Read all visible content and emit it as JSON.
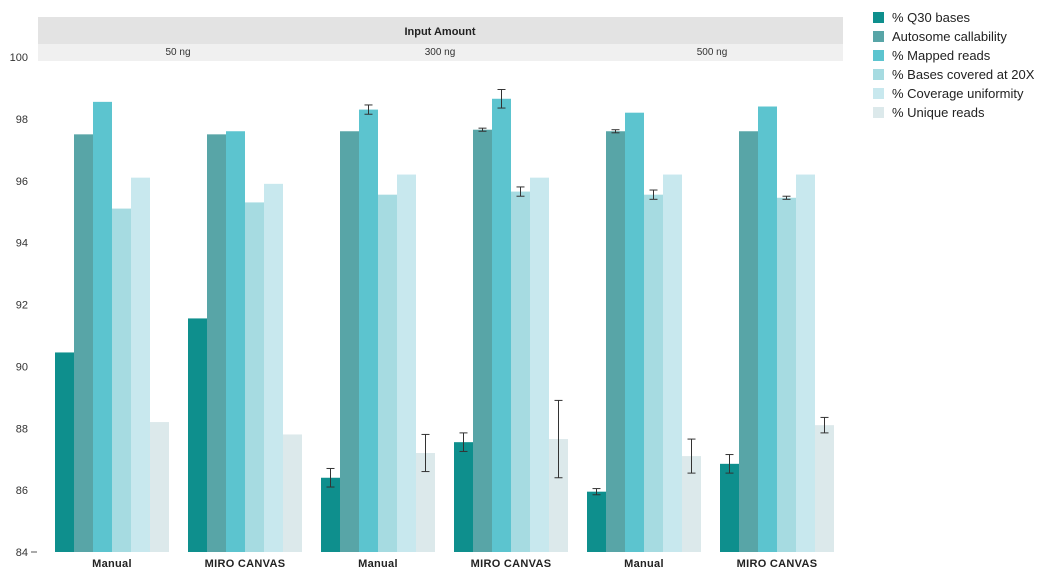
{
  "chart_data": {
    "type": "bar",
    "header": "Input Amount",
    "groups": [
      {
        "label": "50 ng",
        "categories": [
          "Manual",
          "MIRO CANVAS"
        ]
      },
      {
        "label": "300 ng",
        "categories": [
          "Manual",
          "MIRO CANVAS"
        ]
      },
      {
        "label": "500 ng",
        "categories": [
          "Manual",
          "MIRO CANVAS"
        ]
      }
    ],
    "categories": [
      "Manual",
      "MIRO CANVAS",
      "Manual",
      "MIRO CANVAS",
      "Manual",
      "MIRO CANVAS"
    ],
    "ylim": [
      84,
      100
    ],
    "yticks": [
      84,
      86,
      88,
      90,
      92,
      94,
      96,
      98,
      100
    ],
    "legend_position": "top-right",
    "series": [
      {
        "name": "% Q30 bases",
        "color": "#0e8f8d",
        "values": [
          90.45,
          91.55,
          86.4,
          87.55,
          85.95,
          86.85
        ],
        "errors": [
          null,
          null,
          0.3,
          0.3,
          0.1,
          0.3
        ]
      },
      {
        "name": "Autosome callability",
        "color": "#58a5a7",
        "values": [
          97.5,
          97.5,
          97.6,
          97.65,
          97.6,
          97.6
        ],
        "errors": [
          null,
          null,
          null,
          0.05,
          0.05,
          null
        ]
      },
      {
        "name": "% Mapped reads",
        "color": "#5cc4cf",
        "values": [
          98.55,
          97.6,
          98.3,
          98.65,
          98.2,
          98.4
        ],
        "errors": [
          null,
          null,
          0.15,
          0.3,
          null,
          null
        ]
      },
      {
        "name": "% Bases covered at 20X",
        "color": "#a6dbe1",
        "values": [
          95.1,
          95.3,
          95.55,
          95.65,
          95.55,
          95.45
        ],
        "errors": [
          null,
          null,
          null,
          0.15,
          0.15,
          0.05
        ]
      },
      {
        "name": "% Coverage uniformity",
        "color": "#c8e8ee",
        "values": [
          96.1,
          95.9,
          96.2,
          96.1,
          96.2,
          96.2
        ],
        "errors": [
          null,
          null,
          null,
          null,
          null,
          null
        ]
      },
      {
        "name": "% Unique reads",
        "color": "#dce9eb",
        "values": [
          88.2,
          87.8,
          87.2,
          87.65,
          87.1,
          88.1
        ],
        "errors": [
          null,
          null,
          0.6,
          1.25,
          0.55,
          0.25
        ]
      }
    ]
  }
}
